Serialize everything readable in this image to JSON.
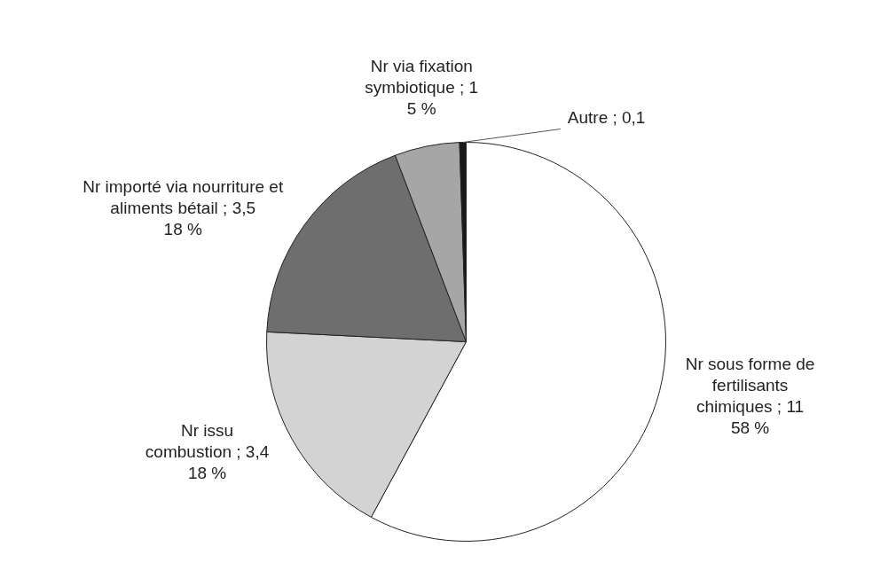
{
  "chart_data": {
    "type": "pie",
    "categories": [
      "Nr sous forme de fertilisants chimiques",
      "Nr issu combustion",
      "Nr importé via nourriture et aliments bétail",
      "Nr via fixation symbiotique",
      "Autre"
    ],
    "values": [
      11,
      3.4,
      3.5,
      1,
      0.1
    ],
    "value_labels": [
      "11\n58 %",
      "3,4\n18 %",
      "3,5\n18 %",
      "1\n5 %",
      "0,1"
    ],
    "colors": [
      "#ffffff",
      "#d3d3d3",
      "#6e6e6e",
      "#a6a6a6",
      "#1a1a1a"
    ],
    "legend": false
  }
}
